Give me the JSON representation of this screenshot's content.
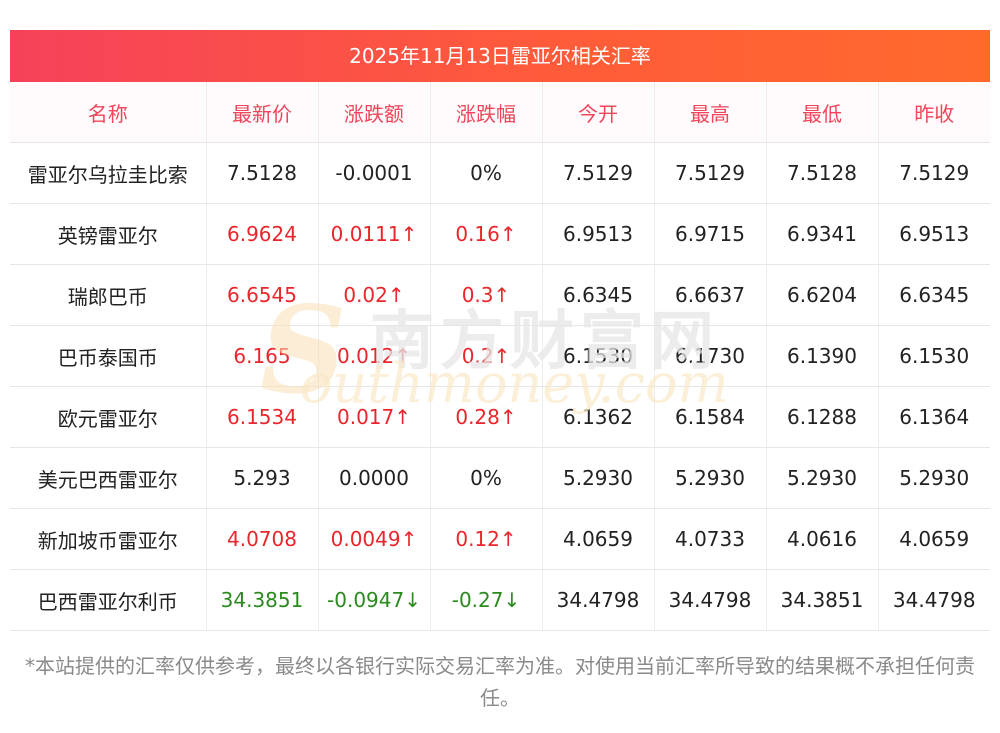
{
  "title": "2025年11月13日雷亚尔相关汇率",
  "headers": [
    "名称",
    "最新价",
    "涨跌额",
    "涨跌幅",
    "今开",
    "最高",
    "最低",
    "昨收"
  ],
  "rows": [
    {
      "name": "雷亚尔乌拉圭比索",
      "latest": "7.5128",
      "change": "-0.0001",
      "pct": "0%",
      "open": "7.5129",
      "high": "7.5129",
      "low": "7.5128",
      "prev": "7.5129",
      "trend": "flat"
    },
    {
      "name": "英镑雷亚尔",
      "latest": "6.9624",
      "change": "0.0111↑",
      "pct": "0.16↑",
      "open": "6.9513",
      "high": "6.9715",
      "low": "6.9341",
      "prev": "6.9513",
      "trend": "up"
    },
    {
      "name": "瑞郎巴币",
      "latest": "6.6545",
      "change": "0.02↑",
      "pct": "0.3↑",
      "open": "6.6345",
      "high": "6.6637",
      "low": "6.6204",
      "prev": "6.6345",
      "trend": "up"
    },
    {
      "name": "巴币泰国币",
      "latest": "6.165",
      "change": "0.012↑",
      "pct": "0.2↑",
      "open": "6.1530",
      "high": "6.1730",
      "low": "6.1390",
      "prev": "6.1530",
      "trend": "up"
    },
    {
      "name": "欧元雷亚尔",
      "latest": "6.1534",
      "change": "0.017↑",
      "pct": "0.28↑",
      "open": "6.1362",
      "high": "6.1584",
      "low": "6.1288",
      "prev": "6.1364",
      "trend": "up"
    },
    {
      "name": "美元巴西雷亚尔",
      "latest": "5.293",
      "change": "0.0000",
      "pct": "0%",
      "open": "5.2930",
      "high": "5.2930",
      "low": "5.2930",
      "prev": "5.2930",
      "trend": "flat"
    },
    {
      "name": "新加坡币雷亚尔",
      "latest": "4.0708",
      "change": "0.0049↑",
      "pct": "0.12↑",
      "open": "4.0659",
      "high": "4.0733",
      "low": "4.0616",
      "prev": "4.0659",
      "trend": "up"
    },
    {
      "name": "巴西雷亚尔利币",
      "latest": "34.3851",
      "change": "-0.0947↓",
      "pct": "-0.27↓",
      "open": "34.4798",
      "high": "34.4798",
      "low": "34.3851",
      "prev": "34.4798",
      "trend": "down"
    }
  ],
  "watermark": {
    "cn": "南方财富网",
    "en": "outhmoney.com",
    "s": "S"
  },
  "note": "*本站提供的汇率仅供参考，最终以各银行实际交易汇率为准。对使用当前汇率所导致的结果概不承担任何责任。",
  "colors": {
    "accent": "#f0455a",
    "up": "#e8262c",
    "down": "#2a8a1e",
    "banner_start": "#f5425a",
    "banner_end": "#ff6a2c"
  }
}
